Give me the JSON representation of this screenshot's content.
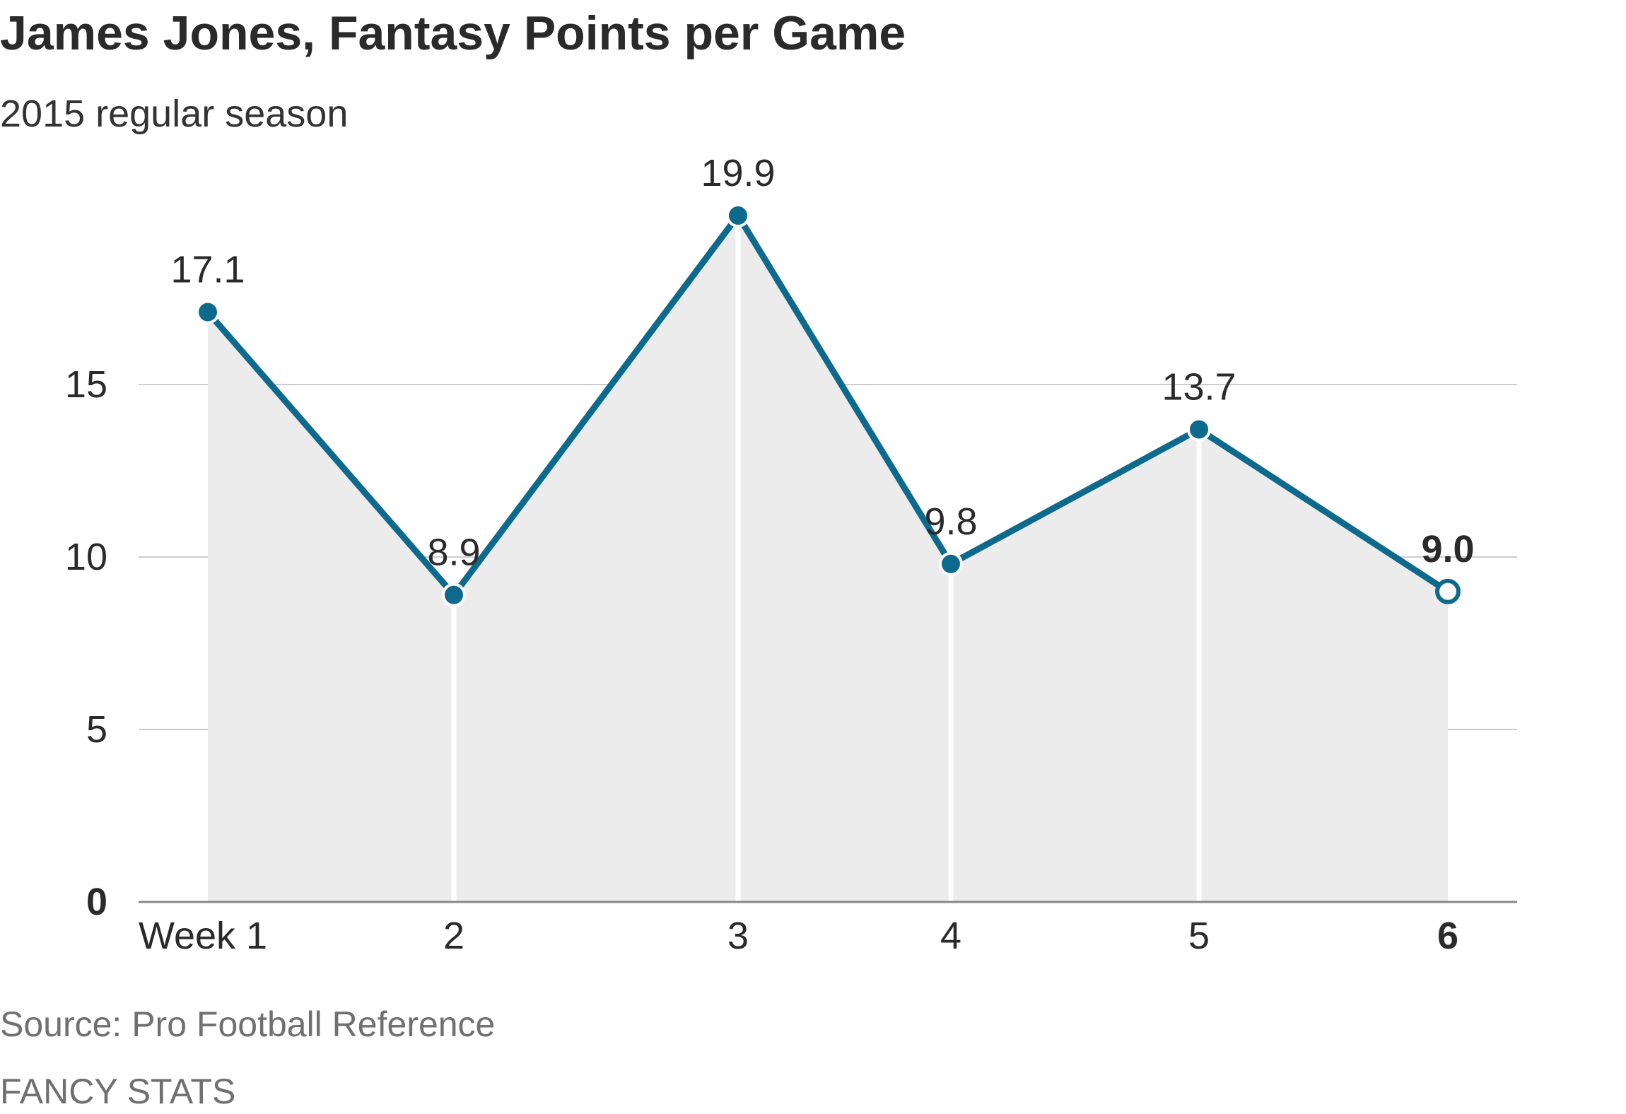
{
  "chart_data": {
    "type": "line",
    "title": "James Jones, Fantasy Points per Game",
    "subtitle": "2015 regular season",
    "categories": [
      "Week 1",
      "2",
      "3",
      "4",
      "5",
      "6"
    ],
    "series": [
      {
        "values": [
          17.1,
          8.9,
          19.9,
          9.8,
          13.7,
          9.0
        ],
        "labels": [
          "17.1",
          "8.9",
          "19.9",
          "9.8",
          "13.7",
          "9.0"
        ]
      }
    ],
    "y_ticks": [
      "0",
      "5",
      "10",
      "15"
    ],
    "y_tick_values": [
      0,
      5,
      10,
      15
    ],
    "ylim": [
      0,
      20
    ],
    "grid": true,
    "area_fill": true,
    "highlight_last": true,
    "colors": {
      "line": "#0e6a8c",
      "area": "#ececec",
      "grid": "#cccccc",
      "axis": "#888888",
      "text": "#2a2a2a"
    }
  },
  "footer": {
    "source": "Source: Pro Football Reference",
    "credit": "FANCY STATS"
  }
}
